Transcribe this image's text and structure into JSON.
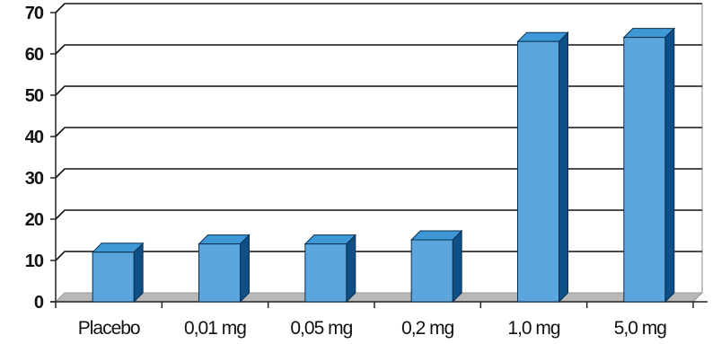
{
  "chart_data": {
    "type": "bar",
    "categories": [
      "Placebo",
      "0,01 mg",
      "0,05 mg",
      "0,2 mg",
      "1,0 mg",
      "5,0 mg"
    ],
    "values": [
      12,
      14,
      14,
      15,
      63,
      64
    ],
    "ylim": [
      0,
      70
    ],
    "yticks": [
      "0",
      "10",
      "20",
      "30",
      "40",
      "50",
      "60",
      "70"
    ],
    "grid": true,
    "colors": {
      "bar_front": "#5BA7DD",
      "bar_top": "#3F98D6",
      "bar_side": "#0D4F86",
      "floor": "#B8B8B8",
      "grid": "#111111"
    }
  }
}
